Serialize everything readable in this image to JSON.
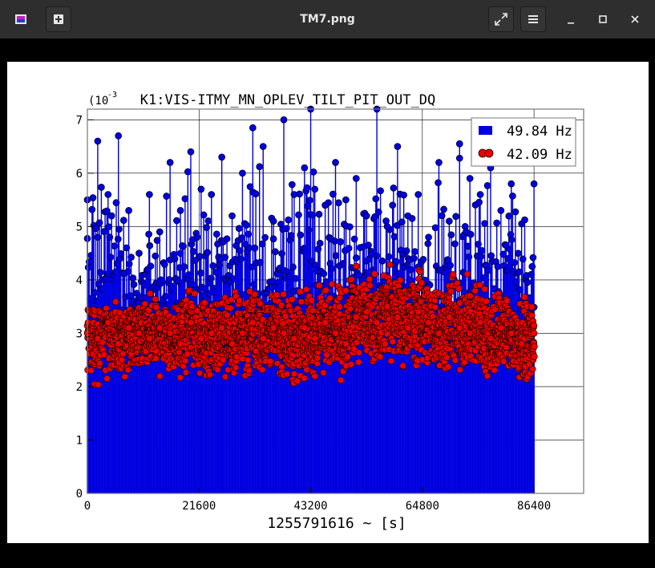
{
  "window": {
    "title": "TM7.png",
    "buttons": {
      "app_icon": "app-image-icon",
      "new": "add-icon",
      "fullscreen": "expand-icon",
      "menu": "hamburger-menu-icon",
      "minimize": "minimize-icon",
      "maximize": "maximize-icon",
      "close": "close-icon"
    }
  },
  "colors": {
    "blue_series": "#0000e0",
    "red_series": "#ee0000",
    "marker_edge": "#000000"
  },
  "chart_data": {
    "type": "scatter",
    "title": "K1:VIS-ITMY_MN_OPLEV_TILT_PIT_OUT_DQ",
    "xlabel": "1255791616 ~ [s]",
    "ylabel": "",
    "y_exponent_label": "(10",
    "y_exponent_power": "-3",
    "xlim": [
      0,
      96000
    ],
    "ylim": [
      0,
      7.2
    ],
    "xticks": [
      "0",
      "21600",
      "43200",
      "64800",
      "86400"
    ],
    "yticks": [
      "0",
      "1",
      "2",
      "3",
      "4",
      "5",
      "6",
      "7"
    ],
    "grid": true,
    "legend_position": "top-right",
    "series": [
      {
        "name": "49.84 Hz",
        "style": "stem",
        "color": "#0000e0",
        "x": [
          0,
          2000,
          4000,
          6000,
          8000,
          10000,
          12000,
          14000,
          16000,
          18000,
          20000,
          22000,
          24000,
          26000,
          28000,
          30000,
          32000,
          34000,
          36000,
          38000,
          40000,
          42000,
          43200,
          44000,
          46000,
          48000,
          50000,
          52000,
          54000,
          56000,
          58000,
          60000,
          62000,
          64000,
          66000,
          68000,
          70000,
          72000,
          74000,
          76000,
          78000,
          80000,
          82000,
          84000,
          86400
        ],
        "y": [
          5.5,
          6.6,
          5.6,
          6.7,
          5.3,
          4.5,
          5.6,
          4.9,
          6.2,
          5.3,
          6.4,
          5.7,
          5.6,
          6.3,
          5.2,
          6.0,
          6.85,
          6.5,
          5.1,
          7.0,
          5.6,
          6.1,
          7.2,
          5.7,
          5.4,
          6.2,
          5.5,
          5.9,
          5.2,
          7.2,
          5.0,
          6.5,
          5.2,
          5.6,
          4.8,
          6.2,
          5.1,
          6.55,
          5.9,
          5.6,
          6.1,
          5.3,
          5.8,
          5.05,
          5.8
        ]
      },
      {
        "name": "42.09 Hz",
        "style": "markers",
        "color": "#ee0000",
        "x": [
          0,
          2000,
          4000,
          6000,
          8000,
          10000,
          12000,
          14000,
          16000,
          18000,
          20000,
          22000,
          24000,
          26000,
          28000,
          30000,
          32000,
          34000,
          36000,
          38000,
          40000,
          42000,
          44000,
          46000,
          48000,
          50000,
          52000,
          54000,
          56000,
          58000,
          60000,
          62000,
          64000,
          66000,
          68000,
          70000,
          72000,
          74000,
          76000,
          78000,
          80000,
          82000,
          84000,
          86400
        ],
        "y": [
          3.0,
          2.9,
          3.2,
          2.8,
          3.1,
          3.0,
          2.9,
          3.1,
          3.0,
          2.8,
          3.2,
          2.9,
          3.0,
          3.1,
          2.8,
          3.0,
          3.2,
          2.9,
          3.1,
          3.0,
          2.9,
          3.1,
          2.9,
          3.2,
          3.0,
          2.8,
          3.3,
          3.4,
          3.2,
          3.5,
          3.3,
          3.1,
          3.4,
          3.2,
          3.0,
          3.3,
          3.1,
          3.0,
          3.2,
          2.9,
          3.1,
          3.0,
          2.8,
          3.0
        ],
        "y_range_min": [
          1.8,
          1.95,
          2.0,
          2.05,
          1.95,
          2.0,
          2.1,
          1.9,
          2.0,
          2.05,
          2.1,
          2.0,
          1.9,
          2.0,
          2.1,
          1.95,
          2.0,
          2.05,
          2.1,
          1.95,
          1.8,
          2.0,
          1.9,
          2.05,
          2.1,
          2.0,
          2.3,
          2.2,
          2.25,
          2.1,
          2.3,
          2.1,
          2.05,
          2.2,
          2.0,
          2.1,
          2.05,
          2.2,
          2.0,
          1.9,
          1.95,
          2.0,
          1.9,
          1.95
        ],
        "y_range_max": [
          3.9,
          3.7,
          3.5,
          3.8,
          3.6,
          3.75,
          3.9,
          3.7,
          3.85,
          3.9,
          3.95,
          3.8,
          3.7,
          3.9,
          4.0,
          3.85,
          4.0,
          3.9,
          3.85,
          3.95,
          3.9,
          4.05,
          4.1,
          4.0,
          4.2,
          4.3,
          4.35,
          4.3,
          4.3,
          4.4,
          4.35,
          4.3,
          4.4,
          4.3,
          4.35,
          4.3,
          4.25,
          4.45,
          4.2,
          4.0,
          4.1,
          3.9,
          3.8,
          3.7
        ]
      }
    ]
  }
}
